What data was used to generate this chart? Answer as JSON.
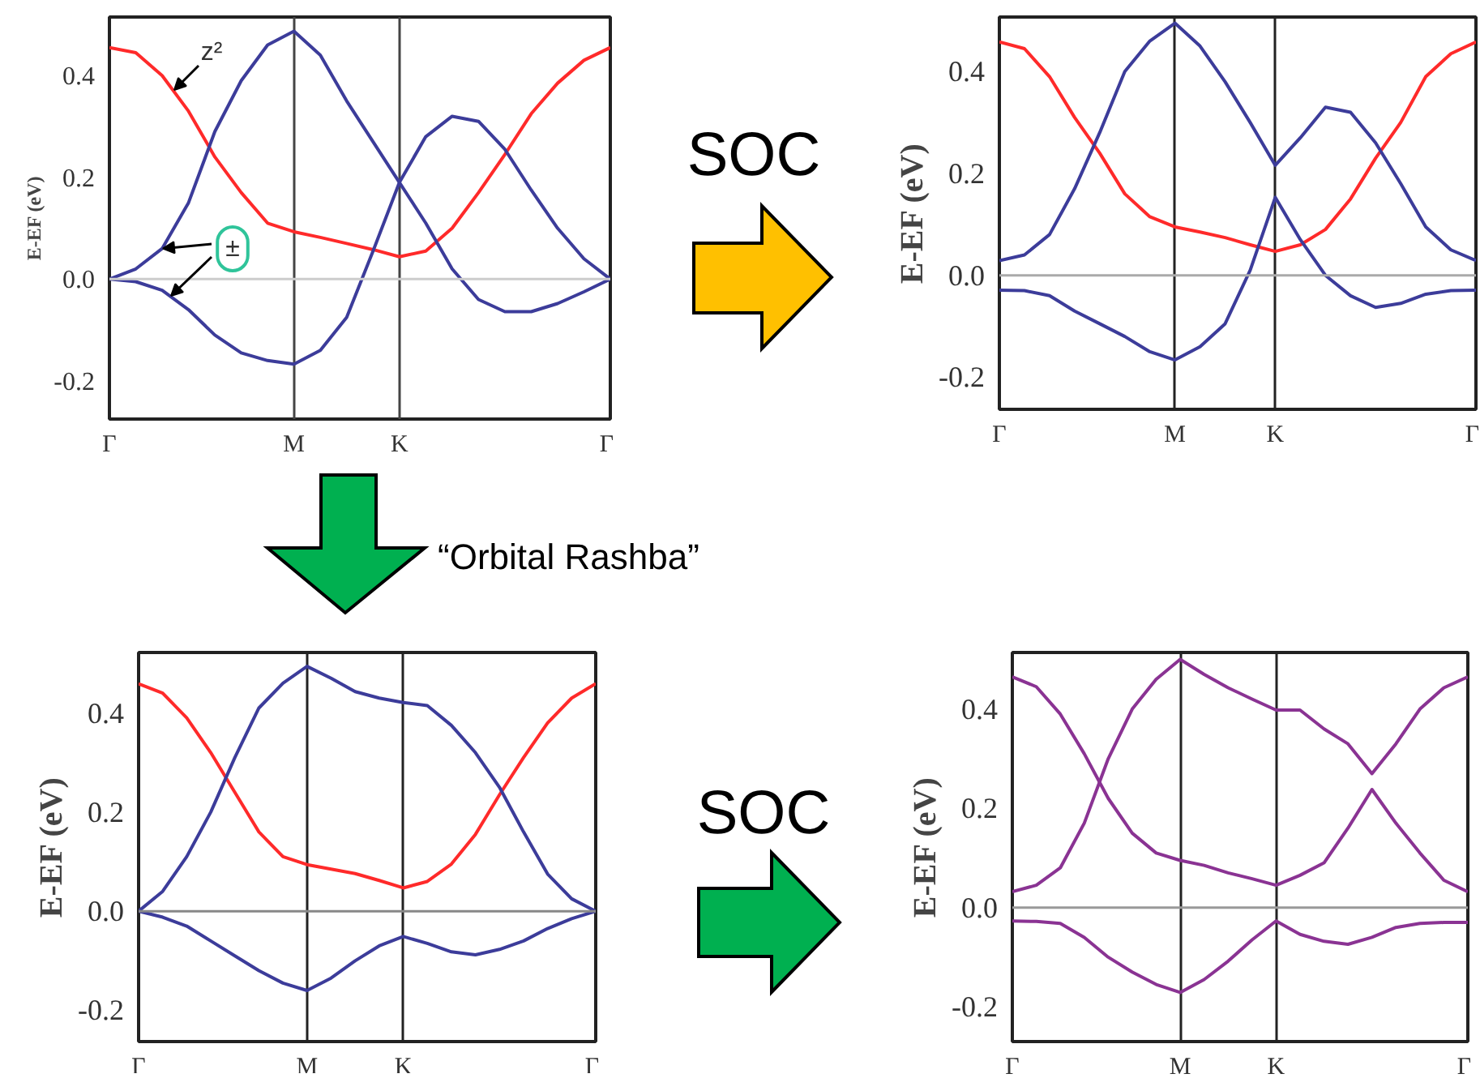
{
  "chart_data": [
    {
      "type": "line",
      "ylabel": "E-EF (eV)",
      "ylim": [
        -0.275,
        0.515
      ],
      "grid": "x",
      "categories": [
        "Γ",
        null,
        null,
        null,
        null,
        null,
        null,
        "M",
        null,
        null,
        null,
        "K",
        null,
        null,
        null,
        null,
        null,
        null,
        null,
        "Γ"
      ],
      "yticks": [
        {
          "value": -0.2,
          "label": "-0.2"
        },
        {
          "value": 0,
          "label": "0.0"
        },
        {
          "value": 0.2,
          "label": "0.2"
        },
        {
          "value": 0.4,
          "label": "0.4"
        }
      ],
      "ref_lines": [
        {
          "axis": "y",
          "value": 0,
          "color": "#cccccc"
        }
      ],
      "annotations": [
        "z²",
        {
          "text": "±",
          "y": 0.06
        }
      ],
      "series": [
        {
          "color": "#ff2a2a",
          "values": [
            0.455,
            0.445,
            0.4,
            0.33,
            0.24,
            0.17,
            0.11,
            0.093,
            0.082,
            0.07,
            0.058,
            0.044,
            0.055,
            0.1,
            0.17,
            0.245,
            0.325,
            0.385,
            0.43,
            0.455
          ]
        },
        {
          "color": "#3c3c9a",
          "values": [
            0,
            0.02,
            0.06,
            0.15,
            0.29,
            0.39,
            0.46,
            0.487,
            0.44,
            0.35,
            0.27,
            0.19,
            0.11,
            0.02,
            -0.04,
            -0.064,
            -0.064,
            -0.048,
            -0.025,
            0
          ]
        },
        {
          "color": "#3c3c9a",
          "values": [
            0,
            -0.005,
            -0.022,
            -0.06,
            -0.11,
            -0.145,
            -0.16,
            -0.167,
            -0.14,
            -0.075,
            0.055,
            0.19,
            0.28,
            0.32,
            0.31,
            0.255,
            0.175,
            0.1,
            0.04,
            0
          ]
        }
      ]
    },
    {
      "type": "line",
      "ylabel": "E-EF (eV)",
      "ylim": [
        -0.263,
        0.507
      ],
      "grid": "x",
      "categories": [
        "Γ",
        null,
        null,
        null,
        null,
        null,
        null,
        "M",
        null,
        null,
        null,
        "K",
        null,
        null,
        null,
        null,
        null,
        null,
        null,
        "Γ"
      ],
      "yticks": [
        {
          "value": -0.2,
          "label": "-0.2"
        },
        {
          "value": 0,
          "label": "0.0"
        },
        {
          "value": 0.2,
          "label": "0.2"
        },
        {
          "value": 0.4,
          "label": "0.4"
        }
      ],
      "ref_lines": [
        {
          "axis": "y",
          "value": 0,
          "color": "#aaaaaa"
        }
      ],
      "annotations": [
        "SOC"
      ],
      "series": [
        {
          "color": "#ff2a2a",
          "values": [
            0.458,
            0.445,
            0.39,
            0.31,
            0.24,
            0.16,
            0.115,
            0.095,
            0.085,
            0.074,
            0.06,
            0.047,
            0.06,
            0.09,
            0.15,
            0.23,
            0.3,
            0.39,
            0.435,
            0.458
          ]
        },
        {
          "color": "#3c3c9a",
          "values": [
            0.029,
            0.04,
            0.08,
            0.17,
            0.28,
            0.4,
            0.46,
            0.495,
            0.45,
            0.38,
            0.3,
            0.216,
            0.27,
            0.33,
            0.32,
            0.26,
            0.18,
            0.095,
            0.05,
            0.029
          ]
        },
        {
          "color": "#3c3c9a",
          "values": [
            -0.029,
            -0.03,
            -0.04,
            -0.07,
            -0.095,
            -0.12,
            -0.15,
            -0.166,
            -0.14,
            -0.095,
            0.01,
            0.153,
            0.07,
            0.0,
            -0.04,
            -0.063,
            -0.055,
            -0.037,
            -0.03,
            -0.029
          ]
        }
      ]
    },
    {
      "type": "line",
      "ylabel": "E-EF (eV)",
      "ylim": [
        -0.263,
        0.522
      ],
      "grid": "x",
      "categories": [
        "Γ",
        null,
        null,
        null,
        null,
        null,
        null,
        "M",
        null,
        null,
        null,
        "K",
        null,
        null,
        null,
        null,
        null,
        null,
        null,
        "Γ"
      ],
      "yticks": [
        {
          "value": -0.2,
          "label": "-0.2"
        },
        {
          "value": 0,
          "label": "0.0"
        },
        {
          "value": 0.2,
          "label": "0.2"
        },
        {
          "value": 0.4,
          "label": "0.4"
        }
      ],
      "ref_lines": [
        {
          "axis": "y",
          "value": 0,
          "color": "#888888"
        }
      ],
      "annotations": [
        "“Orbital Rashba”"
      ],
      "series": [
        {
          "color": "#ff2a2a",
          "values": [
            0.459,
            0.44,
            0.39,
            0.32,
            0.24,
            0.16,
            0.11,
            0.094,
            0.085,
            0.076,
            0.062,
            0.047,
            0.06,
            0.095,
            0.155,
            0.235,
            0.31,
            0.38,
            0.43,
            0.459
          ]
        },
        {
          "color": "#3c3c9a",
          "values": [
            0,
            0.04,
            0.11,
            0.2,
            0.31,
            0.41,
            0.46,
            0.494,
            0.47,
            0.443,
            0.43,
            0.421,
            0.415,
            0.375,
            0.32,
            0.25,
            0.16,
            0.075,
            0.025,
            0
          ]
        },
        {
          "color": "#3c3c9a",
          "values": [
            0,
            -0.012,
            -0.03,
            -0.06,
            -0.09,
            -0.12,
            -0.145,
            -0.16,
            -0.135,
            -0.1,
            -0.07,
            -0.051,
            -0.065,
            -0.082,
            -0.088,
            -0.077,
            -0.06,
            -0.035,
            -0.015,
            0
          ]
        }
      ]
    },
    {
      "type": "line",
      "ylabel": "E-EF (eV)",
      "ylim": [
        -0.27,
        0.514
      ],
      "grid": "x",
      "categories": [
        "Γ",
        null,
        null,
        null,
        null,
        null,
        null,
        "M",
        null,
        null,
        null,
        "K",
        null,
        null,
        null,
        null,
        null,
        null,
        null,
        "Γ"
      ],
      "yticks": [
        {
          "value": -0.2,
          "label": "-0.2"
        },
        {
          "value": 0,
          "label": "0.0"
        },
        {
          "value": 0.2,
          "label": "0.2"
        },
        {
          "value": 0.4,
          "label": "0.4"
        }
      ],
      "ref_lines": [
        {
          "axis": "y",
          "value": 0,
          "color": "#999999"
        }
      ],
      "annotations": [
        "SOC"
      ],
      "series": [
        {
          "color": "#8a3393",
          "values": [
            0.465,
            0.445,
            0.39,
            0.31,
            0.22,
            0.15,
            0.11,
            0.095,
            0.085,
            0.07,
            0.058,
            0.045,
            0.065,
            0.09,
            0.16,
            0.238,
            0.17,
            0.11,
            0.055,
            0.032
          ]
        },
        {
          "color": "#8a3393",
          "values": [
            0.032,
            0.045,
            0.08,
            0.17,
            0.3,
            0.4,
            0.46,
            0.5,
            0.47,
            0.443,
            0.42,
            0.398,
            0.398,
            0.36,
            0.33,
            0.27,
            0.33,
            0.4,
            0.443,
            0.465
          ]
        },
        {
          "color": "#8a3393",
          "values": [
            -0.027,
            -0.028,
            -0.032,
            -0.06,
            -0.1,
            -0.13,
            -0.155,
            -0.171,
            -0.145,
            -0.108,
            -0.065,
            -0.027,
            -0.054,
            -0.068,
            -0.074,
            -0.06,
            -0.04,
            -0.032,
            -0.03,
            -0.03
          ]
        }
      ]
    }
  ]
}
